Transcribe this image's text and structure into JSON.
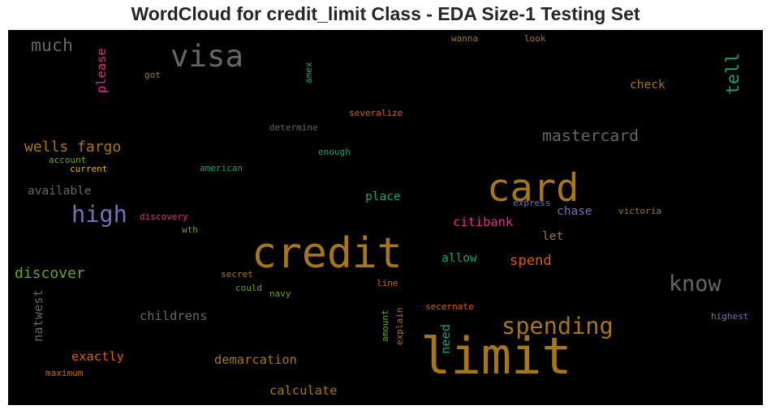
{
  "chart_data": {
    "type": "wordcloud",
    "title": "WordCloud for credit_limit Class - EDA Size-1 Testing Set",
    "background": "#000000",
    "words": [
      {
        "text": "limit",
        "weight": 70,
        "color": "#a6761d"
      },
      {
        "text": "credit",
        "weight": 58,
        "color": "#a6761d"
      },
      {
        "text": "card",
        "weight": 53,
        "color": "#a6761d"
      },
      {
        "text": "visa",
        "weight": 42,
        "color": "#666666"
      },
      {
        "text": "spending",
        "weight": 32,
        "color": "#a6761d"
      },
      {
        "text": "high",
        "weight": 32,
        "color": "#7570b3"
      },
      {
        "text": "know",
        "weight": 30,
        "color": "#666666"
      },
      {
        "text": "tell",
        "weight": 24,
        "color": "#1b9e77"
      },
      {
        "text": "much",
        "weight": 24,
        "color": "#666666"
      },
      {
        "text": "mastercard",
        "weight": 22,
        "color": "#666666"
      },
      {
        "text": "wells fargo",
        "weight": 20,
        "color": "#a6761d"
      },
      {
        "text": "discover",
        "weight": 20,
        "color": "#66a61e"
      },
      {
        "text": "spend",
        "weight": 19,
        "color": "#d95f02"
      },
      {
        "text": "citibank",
        "weight": 17,
        "color": "#e7298a"
      },
      {
        "text": "childrens",
        "weight": 17,
        "color": "#666666"
      },
      {
        "text": "demarcation",
        "weight": 17,
        "color": "#a6761d"
      },
      {
        "text": "calculate",
        "weight": 17,
        "color": "#a6761d"
      },
      {
        "text": "exactly",
        "weight": 17,
        "color": "#d95f02"
      },
      {
        "text": "natwest",
        "weight": 17,
        "color": "#666666"
      },
      {
        "text": "need",
        "weight": 17,
        "color": "#1b9e77"
      },
      {
        "text": "please",
        "weight": 17,
        "color": "#e7298a"
      },
      {
        "text": "check",
        "weight": 16,
        "color": "#a6761d"
      },
      {
        "text": "available",
        "weight": 16,
        "color": "#666666"
      },
      {
        "text": "place",
        "weight": 16,
        "color": "#1b9e77"
      },
      {
        "text": "chase",
        "weight": 16,
        "color": "#7570b3"
      },
      {
        "text": "allow",
        "weight": 16,
        "color": "#1b9e77"
      },
      {
        "text": "let",
        "weight": 16,
        "color": "#a6761d"
      },
      {
        "text": "severalize",
        "weight": 12,
        "color": "#d95f02"
      },
      {
        "text": "determine",
        "weight": 12,
        "color": "#666666"
      },
      {
        "text": "enough",
        "weight": 12,
        "color": "#1b9e77"
      },
      {
        "text": "american",
        "weight": 12,
        "color": "#1b9e77"
      },
      {
        "text": "account",
        "weight": 12,
        "color": "#66a61e"
      },
      {
        "text": "current",
        "weight": 12,
        "color": "#e6ab02"
      },
      {
        "text": "discovery",
        "weight": 12,
        "color": "#e7298a"
      },
      {
        "text": "wth",
        "weight": 12,
        "color": "#66a61e"
      },
      {
        "text": "express",
        "weight": 12,
        "color": "#7570b3"
      },
      {
        "text": "victoria",
        "weight": 12,
        "color": "#a6761d"
      },
      {
        "text": "secret",
        "weight": 12,
        "color": "#a6761d"
      },
      {
        "text": "could",
        "weight": 12,
        "color": "#66a61e"
      },
      {
        "text": "navy",
        "weight": 12,
        "color": "#66a61e"
      },
      {
        "text": "line",
        "weight": 12,
        "color": "#d95f02"
      },
      {
        "text": "secernate",
        "weight": 12,
        "color": "#d95f02"
      },
      {
        "text": "highest",
        "weight": 12,
        "color": "#7570b3"
      },
      {
        "text": "maximum",
        "weight": 12,
        "color": "#d95f02"
      },
      {
        "text": "amount",
        "weight": 12,
        "color": "#66a61e"
      },
      {
        "text": "explain",
        "weight": 12,
        "color": "#a6761d"
      },
      {
        "text": "wanna",
        "weight": 12,
        "color": "#a6761d"
      },
      {
        "text": "look",
        "weight": 12,
        "color": "#a6761d"
      },
      {
        "text": "got",
        "weight": 12,
        "color": "#a6761d"
      },
      {
        "text": "amex",
        "weight": 12,
        "color": "#1b9e77"
      }
    ]
  }
}
